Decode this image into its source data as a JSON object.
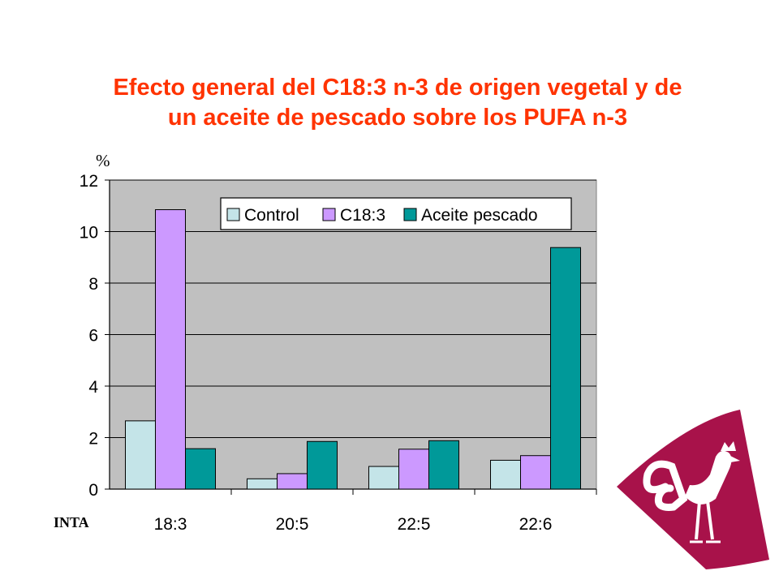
{
  "title_lines": [
    "Efecto general del C18:3 n-3 de origen vegetal y de",
    "un aceite de pescado sobre los PUFA n-3"
  ],
  "unit_label": "%",
  "corner_label": "INTA",
  "colors": {
    "title": "#ff3300",
    "plot_bg": "#c0c0c0",
    "logo": "#a8124a",
    "series": [
      "#c4e4e8",
      "#cc99ff",
      "#009999"
    ]
  },
  "logo": {
    "icon": "rooster-icon"
  },
  "chart_data": {
    "type": "bar",
    "title": "Efecto general del C18:3 n-3 de origen vegetal y de un aceite de pescado sobre los PUFA n-3",
    "xlabel": "",
    "ylabel": "%",
    "ylim": [
      0,
      12
    ],
    "yticks": [
      0,
      2,
      4,
      6,
      8,
      10,
      12
    ],
    "categories": [
      "18:3",
      "20:5",
      "22:5",
      "22:6"
    ],
    "series": [
      {
        "name": "Control",
        "values": [
          2.65,
          0.4,
          0.88,
          1.12
        ]
      },
      {
        "name": "C18:3",
        "values": [
          10.85,
          0.6,
          1.55,
          1.3
        ]
      },
      {
        "name": "Aceite pescado",
        "values": [
          1.57,
          1.85,
          1.88,
          9.38
        ]
      }
    ],
    "grid": true,
    "legend_position": "top-right"
  }
}
